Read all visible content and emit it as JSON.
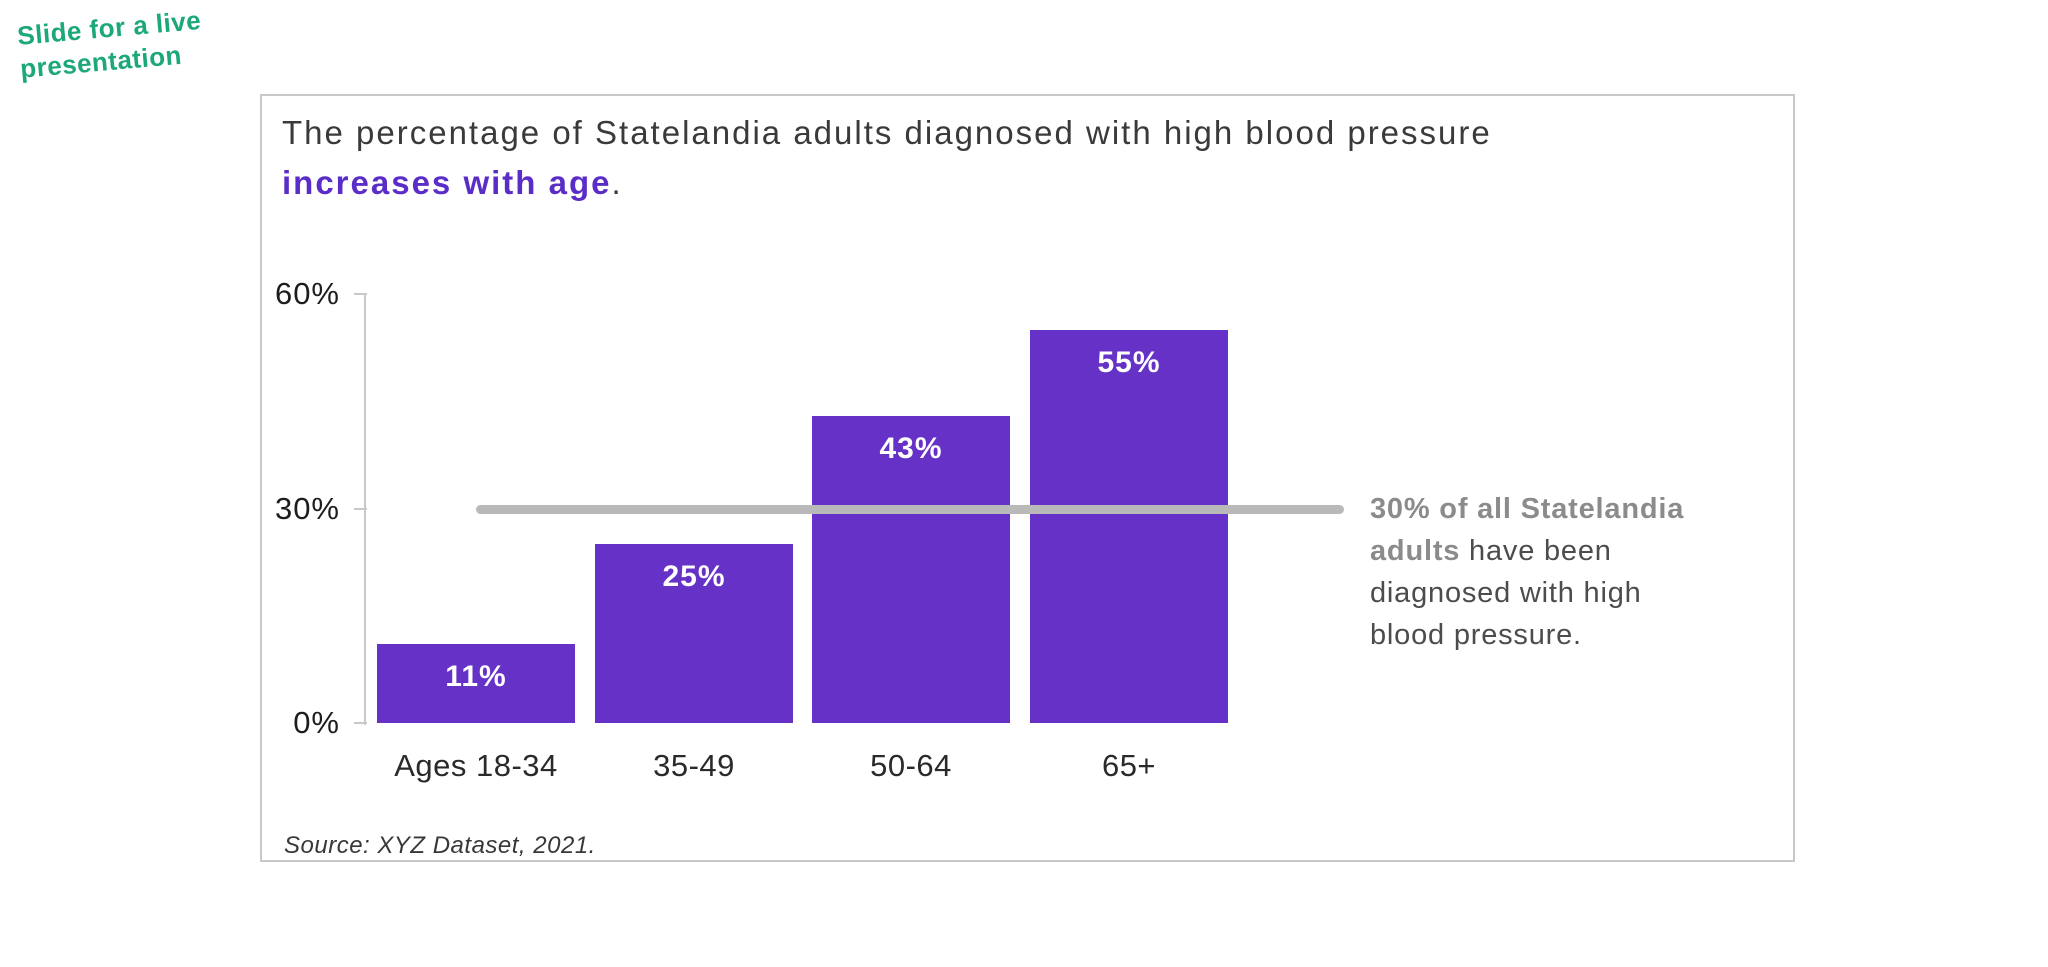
{
  "note": {
    "text": "Slide for a live\npresentation",
    "color": "#1CA878"
  },
  "card": {
    "title": {
      "plain": "The percentage of Statelandia adults diagnosed with high blood pressure",
      "highlight": "increases with age",
      "suffix": ".",
      "highlight_color": "#5B2DC8"
    },
    "source": "Source: XYZ Dataset, 2021."
  },
  "annotation": {
    "bold_color": "#8B8B8B",
    "text_color": "#4C4C4C",
    "full_text": "30% of all Statelandia adults have been diagnosed with high blood pressure.",
    "lines": [
      {
        "bold": "30% of all Statelandia",
        "text": ""
      },
      {
        "bold": "adults",
        "text": " have been"
      },
      {
        "bold": "",
        "text": "diagnosed with high"
      },
      {
        "bold": "",
        "text": "blood pressure."
      }
    ]
  },
  "chart_data": {
    "type": "bar",
    "title": "The percentage of Statelandia adults diagnosed with high blood pressure increases with age.",
    "categories": [
      "Ages 18-34",
      "35-49",
      "50-64",
      "65+"
    ],
    "values": [
      11,
      25,
      43,
      55
    ],
    "data_labels": [
      "11%",
      "25%",
      "43%",
      "55%"
    ],
    "xlabel": "",
    "ylabel": "",
    "ylim": [
      0,
      60
    ],
    "y_ticks": [
      {
        "value": 0,
        "label": "0%"
      },
      {
        "value": 30,
        "label": "30%"
      },
      {
        "value": 60,
        "label": "60%"
      }
    ],
    "grid": false,
    "legend": false,
    "bar_color": "#6631C6",
    "value_label_color": "#FFFFFF",
    "axis_color": "#C8C8C8",
    "reference_line": {
      "value": 30,
      "color": "#B9B9B9",
      "caption": "30% of all Statelandia adults have been diagnosed with high blood pressure."
    },
    "source": "Source: XYZ Dataset, 2021."
  }
}
